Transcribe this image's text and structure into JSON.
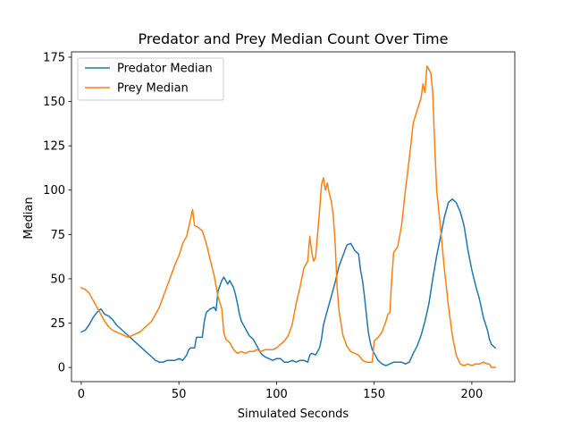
{
  "chart_data": {
    "type": "line",
    "title": "Predator and Prey Median Count Over Time",
    "xlabel": "Simulated Seconds",
    "ylabel": "Median",
    "xlim": [
      -5,
      222
    ],
    "ylim": [
      -8,
      178
    ],
    "xticks": [
      0,
      50,
      100,
      150,
      200
    ],
    "yticks": [
      0,
      25,
      50,
      75,
      100,
      125,
      150,
      175
    ],
    "grid": false,
    "legend_position": "upper-left",
    "series": [
      {
        "name": "Predator Median",
        "color": "#1f77b4",
        "points": [
          [
            0,
            20
          ],
          [
            2,
            21
          ],
          [
            4,
            24
          ],
          [
            6,
            28
          ],
          [
            8,
            31
          ],
          [
            10,
            33
          ],
          [
            12,
            30
          ],
          [
            14,
            29
          ],
          [
            16,
            27
          ],
          [
            18,
            24
          ],
          [
            20,
            22
          ],
          [
            22,
            20
          ],
          [
            24,
            18
          ],
          [
            26,
            16
          ],
          [
            28,
            14
          ],
          [
            30,
            12
          ],
          [
            32,
            10
          ],
          [
            34,
            8
          ],
          [
            36,
            6
          ],
          [
            38,
            4
          ],
          [
            40,
            3
          ],
          [
            42,
            3
          ],
          [
            44,
            4
          ],
          [
            46,
            4
          ],
          [
            48,
            4
          ],
          [
            50,
            5
          ],
          [
            52,
            4
          ],
          [
            54,
            7
          ],
          [
            55,
            10
          ],
          [
            56,
            11
          ],
          [
            58,
            11
          ],
          [
            59,
            17
          ],
          [
            62,
            17
          ],
          [
            63,
            26
          ],
          [
            64,
            31
          ],
          [
            66,
            33
          ],
          [
            68,
            34
          ],
          [
            69,
            32
          ],
          [
            70,
            43
          ],
          [
            72,
            49
          ],
          [
            73,
            51
          ],
          [
            75,
            47
          ],
          [
            76,
            49
          ],
          [
            78,
            45
          ],
          [
            79,
            41
          ],
          [
            80,
            36
          ],
          [
            81,
            30
          ],
          [
            82,
            26
          ],
          [
            83,
            24
          ],
          [
            84,
            22
          ],
          [
            86,
            18
          ],
          [
            88,
            16
          ],
          [
            90,
            12
          ],
          [
            92,
            8
          ],
          [
            94,
            6
          ],
          [
            96,
            5
          ],
          [
            98,
            4
          ],
          [
            100,
            5
          ],
          [
            102,
            5
          ],
          [
            104,
            3
          ],
          [
            106,
            3
          ],
          [
            108,
            4
          ],
          [
            110,
            3
          ],
          [
            112,
            4
          ],
          [
            114,
            4
          ],
          [
            116,
            3
          ],
          [
            117,
            7
          ],
          [
            118,
            8
          ],
          [
            120,
            7
          ],
          [
            121,
            9
          ],
          [
            122,
            11
          ],
          [
            123,
            16
          ],
          [
            124,
            24
          ],
          [
            126,
            32
          ],
          [
            128,
            40
          ],
          [
            130,
            48
          ],
          [
            132,
            57
          ],
          [
            134,
            63
          ],
          [
            136,
            69
          ],
          [
            138,
            70
          ],
          [
            140,
            66
          ],
          [
            142,
            64
          ],
          [
            143,
            55
          ],
          [
            144,
            49
          ],
          [
            145,
            40
          ],
          [
            146,
            30
          ],
          [
            147,
            20
          ],
          [
            148,
            14
          ],
          [
            149,
            10
          ],
          [
            150,
            8
          ],
          [
            152,
            4
          ],
          [
            154,
            2
          ],
          [
            156,
            1
          ],
          [
            158,
            2
          ],
          [
            160,
            3
          ],
          [
            162,
            3
          ],
          [
            164,
            3
          ],
          [
            166,
            2
          ],
          [
            168,
            3
          ],
          [
            170,
            8
          ],
          [
            172,
            12
          ],
          [
            174,
            18
          ],
          [
            176,
            26
          ],
          [
            178,
            36
          ],
          [
            180,
            50
          ],
          [
            182,
            63
          ],
          [
            184,
            74
          ],
          [
            186,
            85
          ],
          [
            188,
            93
          ],
          [
            190,
            95
          ],
          [
            192,
            93
          ],
          [
            194,
            88
          ],
          [
            196,
            80
          ],
          [
            198,
            66
          ],
          [
            200,
            55
          ],
          [
            202,
            46
          ],
          [
            204,
            38
          ],
          [
            206,
            28
          ],
          [
            208,
            21
          ],
          [
            209,
            16
          ],
          [
            210,
            13
          ],
          [
            212,
            11
          ]
        ]
      },
      {
        "name": "Prey Median",
        "color": "#ff7f0e",
        "points": [
          [
            0,
            45
          ],
          [
            2,
            44
          ],
          [
            4,
            42
          ],
          [
            6,
            38
          ],
          [
            8,
            34
          ],
          [
            10,
            30
          ],
          [
            12,
            26
          ],
          [
            14,
            23
          ],
          [
            16,
            21
          ],
          [
            18,
            20
          ],
          [
            20,
            19
          ],
          [
            22,
            18
          ],
          [
            24,
            17
          ],
          [
            26,
            18
          ],
          [
            28,
            19
          ],
          [
            30,
            20
          ],
          [
            32,
            22
          ],
          [
            34,
            24
          ],
          [
            36,
            26
          ],
          [
            38,
            30
          ],
          [
            40,
            34
          ],
          [
            42,
            40
          ],
          [
            44,
            46
          ],
          [
            46,
            52
          ],
          [
            48,
            58
          ],
          [
            50,
            63
          ],
          [
            52,
            70
          ],
          [
            54,
            74
          ],
          [
            55,
            79
          ],
          [
            56,
            84
          ],
          [
            57,
            89
          ],
          [
            58,
            80
          ],
          [
            60,
            79
          ],
          [
            62,
            77
          ],
          [
            64,
            70
          ],
          [
            66,
            61
          ],
          [
            68,
            52
          ],
          [
            70,
            40
          ],
          [
            72,
            33
          ],
          [
            73,
            20
          ],
          [
            74,
            16
          ],
          [
            76,
            14
          ],
          [
            78,
            10
          ],
          [
            80,
            8
          ],
          [
            82,
            9
          ],
          [
            84,
            8
          ],
          [
            86,
            9
          ],
          [
            88,
            9
          ],
          [
            90,
            10
          ],
          [
            92,
            9
          ],
          [
            94,
            10
          ],
          [
            96,
            10
          ],
          [
            98,
            10
          ],
          [
            100,
            11
          ],
          [
            102,
            13
          ],
          [
            104,
            15
          ],
          [
            106,
            18
          ],
          [
            108,
            24
          ],
          [
            109,
            30
          ],
          [
            110,
            36
          ],
          [
            112,
            45
          ],
          [
            114,
            56
          ],
          [
            116,
            60
          ],
          [
            117,
            74
          ],
          [
            118,
            65
          ],
          [
            119,
            60
          ],
          [
            120,
            62
          ],
          [
            121,
            75
          ],
          [
            122,
            88
          ],
          [
            123,
            103
          ],
          [
            124,
            107
          ],
          [
            125,
            100
          ],
          [
            126,
            104
          ],
          [
            127,
            98
          ],
          [
            128,
            94
          ],
          [
            129,
            86
          ],
          [
            130,
            70
          ],
          [
            131,
            45
          ],
          [
            132,
            32
          ],
          [
            134,
            18
          ],
          [
            136,
            12
          ],
          [
            138,
            9
          ],
          [
            140,
            8
          ],
          [
            142,
            7
          ],
          [
            144,
            4
          ],
          [
            146,
            3
          ],
          [
            148,
            3
          ],
          [
            149,
            3
          ],
          [
            150,
            15
          ],
          [
            152,
            17
          ],
          [
            154,
            20
          ],
          [
            156,
            26
          ],
          [
            157,
            30
          ],
          [
            158,
            31
          ],
          [
            159,
            50
          ],
          [
            160,
            65
          ],
          [
            162,
            68
          ],
          [
            164,
            80
          ],
          [
            166,
            100
          ],
          [
            168,
            118
          ],
          [
            170,
            138
          ],
          [
            172,
            145
          ],
          [
            174,
            152
          ],
          [
            175,
            160
          ],
          [
            176,
            155
          ],
          [
            177,
            170
          ],
          [
            178,
            168
          ],
          [
            179,
            166
          ],
          [
            180,
            155
          ],
          [
            181,
            125
          ],
          [
            182,
            100
          ],
          [
            184,
            78
          ],
          [
            186,
            55
          ],
          [
            188,
            35
          ],
          [
            190,
            18
          ],
          [
            192,
            7
          ],
          [
            194,
            2
          ],
          [
            196,
            1
          ],
          [
            198,
            2
          ],
          [
            200,
            1
          ],
          [
            202,
            2
          ],
          [
            204,
            2
          ],
          [
            206,
            3
          ],
          [
            208,
            2
          ],
          [
            209,
            2
          ],
          [
            210,
            0
          ],
          [
            212,
            0
          ]
        ]
      }
    ]
  }
}
